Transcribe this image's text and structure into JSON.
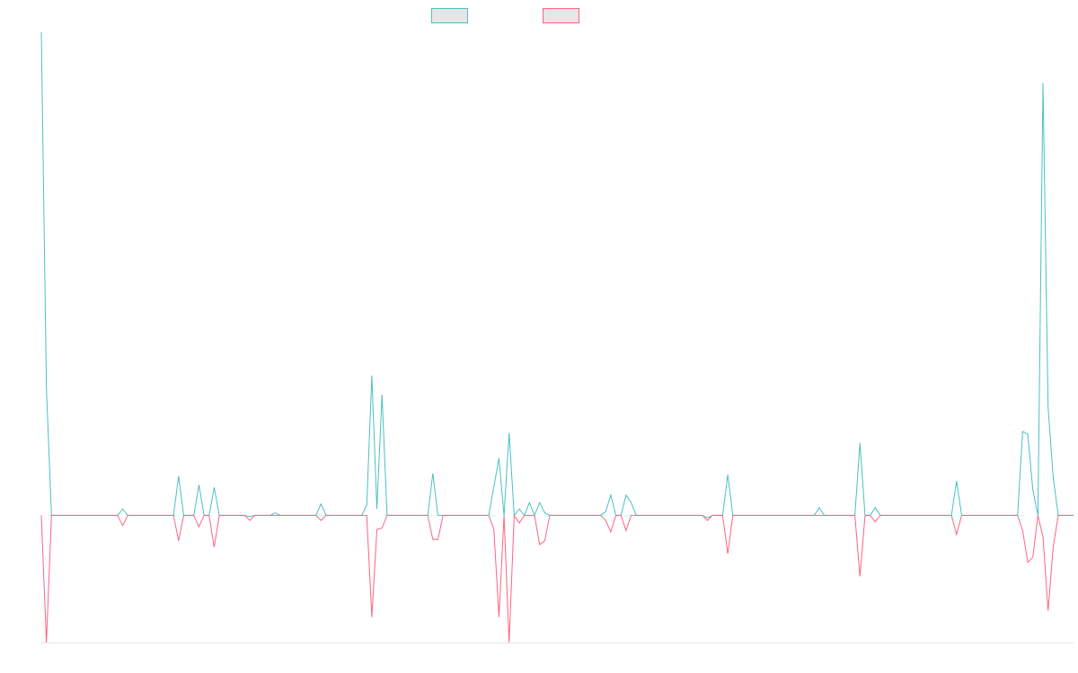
{
  "chart_data": {
    "type": "line",
    "title": "",
    "xlabel": "",
    "ylabel": "",
    "legend_position": "top-center",
    "grid": false,
    "ylim": [
      -1,
      3.8
    ],
    "x_count": 204,
    "series": [
      {
        "color": "#4bc0c0",
        "fill": "#e6e6e6",
        "points": [
          [
            0,
            3.8
          ],
          [
            1,
            1
          ],
          [
            2,
            0
          ],
          [
            15,
            0
          ],
          [
            16,
            0.05
          ],
          [
            17,
            0
          ],
          [
            26,
            0
          ],
          [
            27,
            0.31
          ],
          [
            28,
            0
          ],
          [
            30,
            0
          ],
          [
            31,
            0.24
          ],
          [
            32,
            0
          ],
          [
            33,
            0
          ],
          [
            34,
            0.22
          ],
          [
            35,
            0
          ],
          [
            40,
            0
          ],
          [
            41,
            -0.01
          ],
          [
            42,
            0
          ],
          [
            45,
            0
          ],
          [
            46,
            0.02
          ],
          [
            47,
            0
          ],
          [
            54,
            0
          ],
          [
            55,
            0.09
          ],
          [
            56,
            0
          ],
          [
            63,
            0
          ],
          [
            64,
            0.08
          ],
          [
            65,
            1.1
          ],
          [
            66,
            0.05
          ],
          [
            67,
            0.95
          ],
          [
            68,
            0
          ],
          [
            76,
            0
          ],
          [
            77,
            0.33
          ],
          [
            78,
            0
          ],
          [
            88,
            0
          ],
          [
            90,
            0.45
          ],
          [
            91,
            0
          ],
          [
            92,
            0.65
          ],
          [
            93,
            0
          ],
          [
            94,
            0.05
          ],
          [
            95,
            0
          ],
          [
            96,
            0.1
          ],
          [
            97,
            0
          ],
          [
            98,
            0.1
          ],
          [
            99,
            0.02
          ],
          [
            100,
            0
          ],
          [
            110,
            0
          ],
          [
            111,
            0.03
          ],
          [
            112,
            0.16
          ],
          [
            113,
            0
          ],
          [
            114,
            0
          ],
          [
            115,
            0.16
          ],
          [
            116,
            0.1
          ],
          [
            117,
            0
          ],
          [
            130,
            0
          ],
          [
            131,
            -0.02
          ],
          [
            132,
            0
          ],
          [
            134,
            0
          ],
          [
            135,
            0.32
          ],
          [
            136,
            0
          ],
          [
            152,
            0
          ],
          [
            153,
            0.06
          ],
          [
            154,
            0
          ],
          [
            160,
            0
          ],
          [
            161,
            0.57
          ],
          [
            162,
            0
          ],
          [
            163,
            0
          ],
          [
            164,
            0.06
          ],
          [
            165,
            0
          ],
          [
            179,
            0
          ],
          [
            180,
            0.27
          ],
          [
            181,
            0
          ],
          [
            192,
            0
          ],
          [
            193,
            0.66
          ],
          [
            194,
            0.64
          ],
          [
            195,
            0.2
          ],
          [
            196,
            0
          ],
          [
            197,
            3.4
          ],
          [
            198,
            0.85
          ],
          [
            199,
            0.3
          ],
          [
            200,
            0
          ],
          [
            203,
            0
          ]
        ]
      },
      {
        "color": "#ff6384",
        "fill": "#e6e6e6",
        "points": [
          [
            0,
            0
          ],
          [
            1,
            -1
          ],
          [
            2,
            0
          ],
          [
            15,
            0
          ],
          [
            16,
            -0.08
          ],
          [
            17,
            0
          ],
          [
            26,
            0
          ],
          [
            27,
            -0.2
          ],
          [
            28,
            0
          ],
          [
            30,
            0
          ],
          [
            31,
            -0.09
          ],
          [
            32,
            0
          ],
          [
            33,
            0
          ],
          [
            34,
            -0.25
          ],
          [
            35,
            0
          ],
          [
            40,
            0
          ],
          [
            41,
            -0.04
          ],
          [
            42,
            0
          ],
          [
            45,
            0
          ],
          [
            46,
            0
          ],
          [
            47,
            0
          ],
          [
            54,
            0
          ],
          [
            55,
            -0.04
          ],
          [
            56,
            0
          ],
          [
            63,
            0
          ],
          [
            64,
            0
          ],
          [
            65,
            -0.8
          ],
          [
            66,
            -0.11
          ],
          [
            67,
            -0.1
          ],
          [
            68,
            0
          ],
          [
            76,
            0
          ],
          [
            77,
            -0.19
          ],
          [
            78,
            -0.19
          ],
          [
            79,
            0
          ],
          [
            88,
            0
          ],
          [
            89,
            -0.11
          ],
          [
            90,
            -0.8
          ],
          [
            91,
            0
          ],
          [
            92,
            -1
          ],
          [
            93,
            0
          ],
          [
            94,
            -0.06
          ],
          [
            95,
            0
          ],
          [
            97,
            0
          ],
          [
            98,
            -0.23
          ],
          [
            99,
            -0.2
          ],
          [
            100,
            0
          ],
          [
            110,
            0
          ],
          [
            111,
            -0.04
          ],
          [
            112,
            -0.13
          ],
          [
            113,
            0
          ],
          [
            114,
            0
          ],
          [
            115,
            -0.12
          ],
          [
            116,
            0
          ],
          [
            130,
            0
          ],
          [
            131,
            -0.04
          ],
          [
            132,
            0
          ],
          [
            134,
            0
          ],
          [
            135,
            -0.3
          ],
          [
            136,
            0
          ],
          [
            152,
            0
          ],
          [
            153,
            0
          ],
          [
            154,
            0
          ],
          [
            160,
            0
          ],
          [
            161,
            -0.48
          ],
          [
            162,
            0
          ],
          [
            163,
            0
          ],
          [
            164,
            -0.05
          ],
          [
            165,
            0
          ],
          [
            179,
            0
          ],
          [
            180,
            -0.15
          ],
          [
            181,
            0
          ],
          [
            192,
            0
          ],
          [
            193,
            -0.12
          ],
          [
            194,
            -0.37
          ],
          [
            195,
            -0.33
          ],
          [
            196,
            0
          ],
          [
            197,
            -0.17
          ],
          [
            198,
            -0.75
          ],
          [
            199,
            -0.25
          ],
          [
            200,
            0
          ],
          [
            203,
            0
          ]
        ]
      }
    ]
  }
}
